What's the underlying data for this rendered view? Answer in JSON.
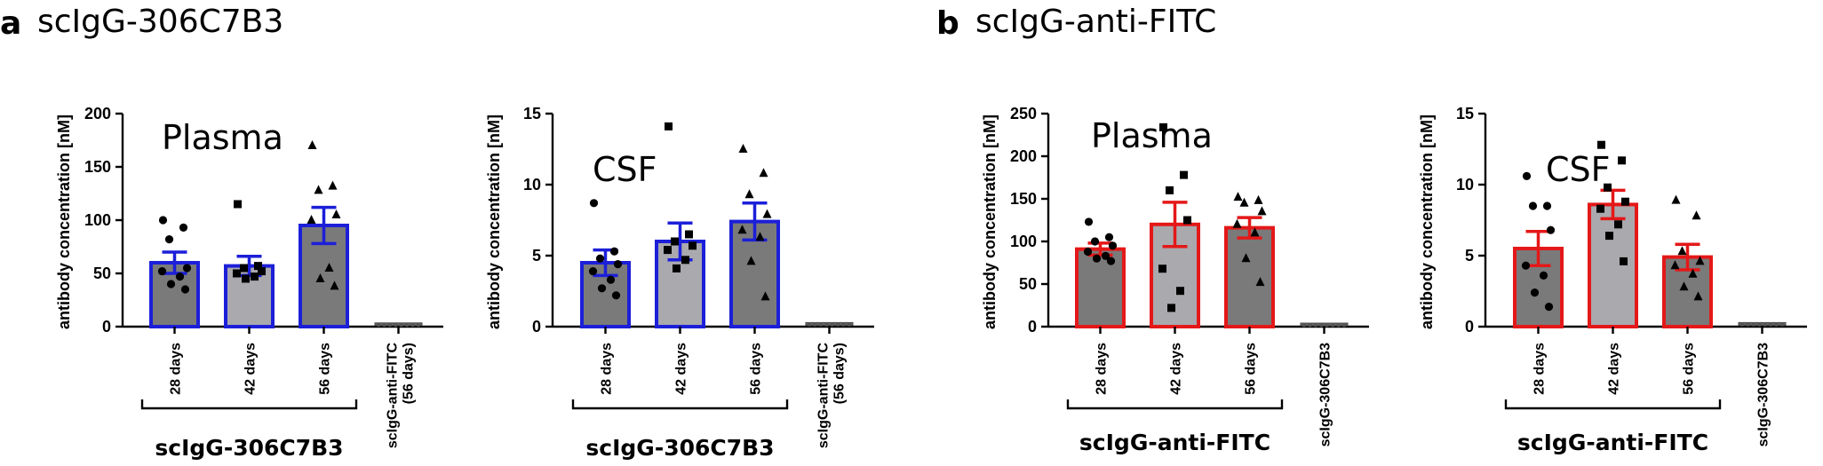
{
  "panels": [
    {
      "letter": "a",
      "title": "scIgG-306C7B3"
    },
    {
      "letter": "b",
      "title": "scIgG-anti-FITC"
    }
  ],
  "chart_data": [
    {
      "type": "bar",
      "panel": "a",
      "inset_label": "Plasma",
      "ylabel": "antibody concentration [nM]",
      "ylim": [
        0,
        200
      ],
      "yticks": [
        0,
        50,
        100,
        150,
        200
      ],
      "categories": [
        "28 days",
        "42 days",
        "56 days",
        "scIgG-anti-FITC\n(56 days)"
      ],
      "values": [
        60,
        57,
        95,
        1
      ],
      "errors": [
        10,
        9,
        17,
        0
      ],
      "points": [
        [
          100,
          93,
          82,
          55,
          52,
          47,
          40,
          35
        ],
        [
          115,
          57,
          55,
          52,
          50,
          47,
          45
        ],
        [
          170,
          132,
          128,
          105,
          100,
          55,
          45,
          38
        ],
        [
          1,
          1,
          1,
          1,
          1,
          1,
          1,
          1
        ]
      ],
      "markers": [
        "circle",
        "square",
        "triangle",
        "none"
      ],
      "bar_fill": [
        "#7a7a7a",
        "#a9a9ae",
        "#7a7a7a",
        "#ffffff"
      ],
      "bar_stroke": "#1c1fd8",
      "group_label": "scIgG-306C7B3",
      "group_span": [
        0,
        2
      ]
    },
    {
      "type": "bar",
      "panel": "a",
      "inset_label": "CSF",
      "ylabel": "antibody concentration [nM]",
      "ylim": [
        0,
        15
      ],
      "yticks": [
        0,
        5,
        10,
        15
      ],
      "categories": [
        "28 days",
        "42 days",
        "56 days",
        "scIgG-anti-FITC\n(56 days)"
      ],
      "values": [
        4.5,
        6,
        7.4,
        0.1
      ],
      "errors": [
        0.9,
        1.3,
        1.3,
        0
      ],
      "points": [
        [
          8.7,
          5.3,
          4.8,
          4.4,
          3.9,
          3.3,
          2.7,
          2.2
        ],
        [
          14.1,
          6.5,
          6.0,
          5.7,
          5.4,
          4.7,
          4.1
        ],
        [
          12.5,
          10.8,
          9.3,
          7.9,
          6.8,
          6.3,
          4.6,
          2.1
        ],
        [
          0.1,
          0.1,
          0.1,
          0.1,
          0.1,
          0.1,
          0.1,
          0.1
        ]
      ],
      "markers": [
        "circle",
        "square",
        "triangle",
        "none"
      ],
      "bar_fill": [
        "#7a7a7a",
        "#a9a9ae",
        "#7a7a7a",
        "#ffffff"
      ],
      "bar_stroke": "#1c1fd8",
      "group_label": "scIgG-306C7B3",
      "group_span": [
        0,
        2
      ]
    },
    {
      "type": "bar",
      "panel": "b",
      "inset_label": "Plasma",
      "ylabel": "antibody concentration [nM]",
      "ylim": [
        0,
        250
      ],
      "yticks": [
        0,
        50,
        100,
        150,
        200,
        250
      ],
      "categories": [
        "28 days",
        "42 days",
        "56 days",
        "scIgG-306C7B3"
      ],
      "values": [
        91,
        120,
        116,
        1
      ],
      "errors": [
        7,
        26,
        12,
        0
      ],
      "points": [
        [
          123,
          105,
          100,
          95,
          88,
          83,
          80,
          77
        ],
        [
          234,
          178,
          160,
          125,
          68,
          42,
          22
        ],
        [
          152,
          148,
          145,
          135,
          120,
          110,
          80,
          52
        ],
        [
          1,
          1,
          1,
          1,
          1,
          1,
          1,
          1
        ]
      ],
      "markers": [
        "circle",
        "square",
        "triangle",
        "none"
      ],
      "bar_fill": [
        "#7a7a7a",
        "#a9a9ae",
        "#7a7a7a",
        "#ffffff"
      ],
      "bar_stroke": "#e41818",
      "group_label": "scIgG-anti-FITC",
      "group_span": [
        0,
        2
      ]
    },
    {
      "type": "bar",
      "panel": "b",
      "inset_label": "CSF",
      "ylabel": "antibody concentration [nM]",
      "ylim": [
        0,
        15
      ],
      "yticks": [
        0,
        5,
        10,
        15
      ],
      "categories": [
        "28 days",
        "42 days",
        "56 days",
        "scIgG-306C7B3"
      ],
      "values": [
        5.5,
        8.6,
        4.9,
        0.1
      ],
      "errors": [
        1.2,
        1.0,
        0.9,
        0
      ],
      "points": [
        [
          10.6,
          8.5,
          8.5,
          6.8,
          4.3,
          3.6,
          2.4,
          1.4
        ],
        [
          12.8,
          11.7,
          9.8,
          8.8,
          8.3,
          7.2,
          6.4,
          4.6
        ],
        [
          8.9,
          7.8,
          5.3,
          4.6,
          4.3,
          3.7,
          2.8,
          2.1
        ],
        [
          0.1,
          0.1,
          0.1,
          0.1,
          0.1,
          0.1,
          0.1,
          0.1
        ]
      ],
      "markers": [
        "circle",
        "square",
        "triangle",
        "none"
      ],
      "bar_fill": [
        "#7a7a7a",
        "#a9a9ae",
        "#7a7a7a",
        "#ffffff"
      ],
      "bar_stroke": "#e41818",
      "group_label": "scIgG-anti-FITC",
      "group_span": [
        0,
        2
      ]
    }
  ]
}
